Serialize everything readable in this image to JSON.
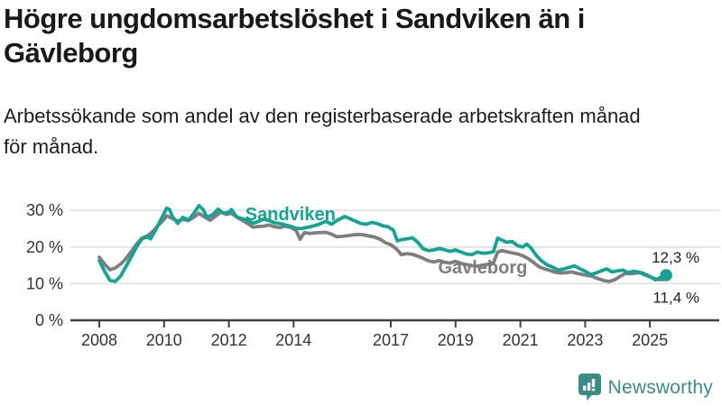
{
  "header": {
    "title_lines": [
      "Högre ungdomsarbetslöshet i Sandviken än i",
      "Gävleborg"
    ],
    "subtitle_lines": [
      "Arbetssökande som andel av den registerbaserade arbetskraften månad",
      "för månad."
    ]
  },
  "chart_data": {
    "type": "line",
    "title": "Högre ungdomsarbetslöshet i Sandviken än i Gävleborg",
    "subtitle": "Arbetssökande som andel av den registerbaserade arbetskraften månad för månad.",
    "xlabel": "",
    "ylabel": "",
    "unit": "%",
    "grid": "horizontal",
    "grid_color": "#d9d9d9",
    "axis_color": "#3f3f3f",
    "text_color": "#333333",
    "xlim": [
      2007.9,
      2025.75
    ],
    "ylim": [
      0,
      33
    ],
    "x_ticks": [
      2008,
      2010,
      2012,
      2014,
      2017,
      2019,
      2021,
      2023,
      2025
    ],
    "x_tick_labels": [
      "2008",
      "2010",
      "2012",
      "2014",
      "2017",
      "2019",
      "2021",
      "2023",
      "2025"
    ],
    "y_ticks": [
      0,
      10,
      20,
      30
    ],
    "y_tick_labels": [
      "0 %",
      "10 %",
      "20 %",
      "30 %"
    ],
    "series": [
      {
        "name": "Sandviken",
        "color": "#16a295",
        "end_label": "12,3 %",
        "end_dot": true,
        "label_pos": [
          2013.9,
          29.1
        ],
        "points": [
          [
            2008.0,
            16.3
          ],
          [
            2008.17,
            13.3
          ],
          [
            2008.33,
            10.9
          ],
          [
            2008.5,
            10.6
          ],
          [
            2008.67,
            12.2
          ],
          [
            2008.83,
            14.8
          ],
          [
            2009.0,
            17.5
          ],
          [
            2009.17,
            20.3
          ],
          [
            2009.33,
            22.3
          ],
          [
            2009.5,
            22.8
          ],
          [
            2009.58,
            22.2
          ],
          [
            2009.75,
            24.8
          ],
          [
            2009.92,
            27.8
          ],
          [
            2010.08,
            30.6
          ],
          [
            2010.17,
            30.2
          ],
          [
            2010.25,
            28.4
          ],
          [
            2010.42,
            26.4
          ],
          [
            2010.58,
            28.1
          ],
          [
            2010.75,
            27.3
          ],
          [
            2010.92,
            29.2
          ],
          [
            2011.08,
            31.3
          ],
          [
            2011.2,
            30.3
          ],
          [
            2011.33,
            28.1
          ],
          [
            2011.5,
            28.8
          ],
          [
            2011.67,
            30.3
          ],
          [
            2011.83,
            29.2
          ],
          [
            2012.0,
            29.5
          ],
          [
            2012.08,
            30.2
          ],
          [
            2012.25,
            28.2
          ],
          [
            2012.42,
            27.7
          ],
          [
            2012.58,
            27.3
          ],
          [
            2012.75,
            26.5
          ],
          [
            2012.92,
            27.0
          ],
          [
            2013.08,
            27.6
          ],
          [
            2013.25,
            27.2
          ],
          [
            2013.42,
            26.6
          ],
          [
            2013.58,
            26.4
          ],
          [
            2013.75,
            26.0
          ],
          [
            2013.92,
            25.6
          ],
          [
            2014.08,
            25.1
          ],
          [
            2014.25,
            25.0
          ],
          [
            2014.5,
            25.5
          ],
          [
            2014.75,
            26.1
          ],
          [
            2015.0,
            27.0
          ],
          [
            2015.17,
            26.2
          ],
          [
            2015.33,
            27.2
          ],
          [
            2015.58,
            28.3
          ],
          [
            2015.75,
            27.7
          ],
          [
            2015.92,
            27.0
          ],
          [
            2016.08,
            26.4
          ],
          [
            2016.25,
            26.2
          ],
          [
            2016.42,
            26.7
          ],
          [
            2016.58,
            26.4
          ],
          [
            2016.75,
            25.8
          ],
          [
            2016.92,
            25.5
          ],
          [
            2017.08,
            24.6
          ],
          [
            2017.2,
            21.7
          ],
          [
            2017.33,
            22.0
          ],
          [
            2017.5,
            22.2
          ],
          [
            2017.67,
            22.5
          ],
          [
            2017.83,
            21.3
          ],
          [
            2018.0,
            19.5
          ],
          [
            2018.17,
            19.0
          ],
          [
            2018.33,
            19.2
          ],
          [
            2018.5,
            19.6
          ],
          [
            2018.67,
            19.2
          ],
          [
            2018.83,
            18.8
          ],
          [
            2019.0,
            19.2
          ],
          [
            2019.17,
            18.6
          ],
          [
            2019.33,
            18.1
          ],
          [
            2019.5,
            17.9
          ],
          [
            2019.67,
            18.6
          ],
          [
            2019.83,
            18.3
          ],
          [
            2020.0,
            18.4
          ],
          [
            2020.17,
            18.7
          ],
          [
            2020.3,
            22.4
          ],
          [
            2020.42,
            21.9
          ],
          [
            2020.58,
            21.3
          ],
          [
            2020.75,
            21.5
          ],
          [
            2020.92,
            20.3
          ],
          [
            2021.08,
            20.0
          ],
          [
            2021.2,
            20.8
          ],
          [
            2021.33,
            19.7
          ],
          [
            2021.5,
            17.6
          ],
          [
            2021.67,
            16.1
          ],
          [
            2021.83,
            15.1
          ],
          [
            2022.0,
            14.5
          ],
          [
            2022.17,
            13.7
          ],
          [
            2022.33,
            14.0
          ],
          [
            2022.5,
            14.4
          ],
          [
            2022.67,
            14.9
          ],
          [
            2022.83,
            14.1
          ],
          [
            2023.0,
            13.4
          ],
          [
            2023.17,
            12.5
          ],
          [
            2023.33,
            12.9
          ],
          [
            2023.5,
            13.5
          ],
          [
            2023.67,
            14.0
          ],
          [
            2023.83,
            13.2
          ],
          [
            2024.0,
            13.5
          ],
          [
            2024.17,
            13.7
          ],
          [
            2024.33,
            13.0
          ],
          [
            2024.5,
            13.4
          ],
          [
            2024.67,
            13.1
          ],
          [
            2024.83,
            12.4
          ],
          [
            2025.0,
            11.9
          ],
          [
            2025.17,
            11.0
          ],
          [
            2025.33,
            11.7
          ],
          [
            2025.5,
            12.3
          ]
        ]
      },
      {
        "name": "Gävleborg",
        "color": "#7e7e7e",
        "end_label": "11,4 %",
        "end_dot": false,
        "label_pos": [
          2019.84,
          14.5
        ],
        "points": [
          [
            2008.0,
            17.2
          ],
          [
            2008.17,
            15.3
          ],
          [
            2008.33,
            13.8
          ],
          [
            2008.5,
            14.3
          ],
          [
            2008.67,
            15.4
          ],
          [
            2008.83,
            16.9
          ],
          [
            2009.0,
            18.9
          ],
          [
            2009.17,
            21.0
          ],
          [
            2009.33,
            22.5
          ],
          [
            2009.5,
            23.1
          ],
          [
            2009.67,
            24.4
          ],
          [
            2009.83,
            26.0
          ],
          [
            2010.0,
            27.5
          ],
          [
            2010.08,
            28.5
          ],
          [
            2010.25,
            27.8
          ],
          [
            2010.42,
            27.1
          ],
          [
            2010.58,
            27.5
          ],
          [
            2010.75,
            27.2
          ],
          [
            2010.92,
            28.1
          ],
          [
            2011.08,
            29.2
          ],
          [
            2011.25,
            28.2
          ],
          [
            2011.42,
            27.3
          ],
          [
            2011.58,
            28.3
          ],
          [
            2011.75,
            29.6
          ],
          [
            2011.92,
            28.9
          ],
          [
            2012.08,
            29.2
          ],
          [
            2012.25,
            28.1
          ],
          [
            2012.42,
            27.3
          ],
          [
            2012.58,
            26.4
          ],
          [
            2012.75,
            25.4
          ],
          [
            2012.92,
            25.6
          ],
          [
            2013.08,
            25.7
          ],
          [
            2013.25,
            26.0
          ],
          [
            2013.42,
            25.5
          ],
          [
            2013.58,
            25.3
          ],
          [
            2013.75,
            25.7
          ],
          [
            2013.92,
            25.3
          ],
          [
            2014.08,
            24.5
          ],
          [
            2014.2,
            22.1
          ],
          [
            2014.33,
            23.9
          ],
          [
            2014.5,
            23.7
          ],
          [
            2014.75,
            23.9
          ],
          [
            2015.0,
            24.0
          ],
          [
            2015.17,
            23.5
          ],
          [
            2015.33,
            22.8
          ],
          [
            2015.5,
            22.9
          ],
          [
            2015.67,
            23.1
          ],
          [
            2015.83,
            23.3
          ],
          [
            2016.0,
            23.4
          ],
          [
            2016.17,
            23.3
          ],
          [
            2016.33,
            23.0
          ],
          [
            2016.5,
            22.7
          ],
          [
            2016.67,
            22.1
          ],
          [
            2016.83,
            21.2
          ],
          [
            2017.0,
            20.6
          ],
          [
            2017.17,
            19.5
          ],
          [
            2017.33,
            17.9
          ],
          [
            2017.5,
            18.2
          ],
          [
            2017.67,
            18.0
          ],
          [
            2017.83,
            17.5
          ],
          [
            2018.0,
            16.9
          ],
          [
            2018.17,
            16.2
          ],
          [
            2018.33,
            15.9
          ],
          [
            2018.5,
            16.3
          ],
          [
            2018.67,
            15.8
          ],
          [
            2018.83,
            15.6
          ],
          [
            2019.0,
            16.1
          ],
          [
            2019.17,
            15.5
          ],
          [
            2019.33,
            15.2
          ],
          [
            2019.5,
            14.9
          ],
          [
            2019.67,
            14.8
          ],
          [
            2019.83,
            15.0
          ],
          [
            2020.0,
            15.3
          ],
          [
            2020.17,
            15.7
          ],
          [
            2020.3,
            18.6
          ],
          [
            2020.42,
            19.0
          ],
          [
            2020.58,
            18.7
          ],
          [
            2020.75,
            18.4
          ],
          [
            2020.92,
            18.1
          ],
          [
            2021.08,
            17.6
          ],
          [
            2021.25,
            16.8
          ],
          [
            2021.42,
            15.7
          ],
          [
            2021.58,
            14.6
          ],
          [
            2021.75,
            14.0
          ],
          [
            2021.92,
            13.6
          ],
          [
            2022.08,
            13.1
          ],
          [
            2022.25,
            12.9
          ],
          [
            2022.42,
            13.0
          ],
          [
            2022.58,
            13.2
          ],
          [
            2022.75,
            12.8
          ],
          [
            2022.92,
            12.5
          ],
          [
            2023.08,
            12.2
          ],
          [
            2023.25,
            11.9
          ],
          [
            2023.42,
            11.3
          ],
          [
            2023.58,
            10.8
          ],
          [
            2023.75,
            10.6
          ],
          [
            2023.92,
            11.1
          ],
          [
            2024.08,
            12.0
          ],
          [
            2024.25,
            12.8
          ],
          [
            2024.42,
            12.7
          ],
          [
            2024.58,
            12.9
          ],
          [
            2024.75,
            13.0
          ],
          [
            2024.92,
            12.3
          ],
          [
            2025.08,
            11.6
          ],
          [
            2025.25,
            11.1
          ],
          [
            2025.42,
            11.1
          ],
          [
            2025.5,
            11.4
          ]
        ]
      }
    ]
  },
  "footer": {
    "brand": "Newsworthy",
    "brand_color": "#3a8c84",
    "logo_icon": "bar-chart-pin-icon"
  }
}
